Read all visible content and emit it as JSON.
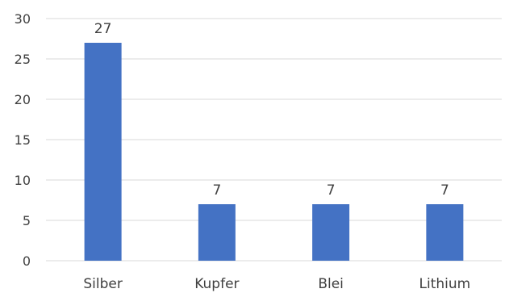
{
  "chart_data": {
    "type": "bar",
    "title": "",
    "xlabel": "",
    "ylabel": "",
    "categories": [
      "Silber",
      "Kupfer",
      "Blei",
      "Lithium"
    ],
    "values": [
      27,
      7,
      7,
      7
    ],
    "data_labels": [
      "27",
      "7",
      "7",
      "7"
    ],
    "ylim": [
      0,
      30
    ],
    "yticks": [
      0,
      5,
      10,
      15,
      20,
      25,
      30
    ],
    "grid": true,
    "legend": "none",
    "bar_color": "#4472c4",
    "grid_color": "#d9d9d9",
    "text_color": "#404040"
  }
}
